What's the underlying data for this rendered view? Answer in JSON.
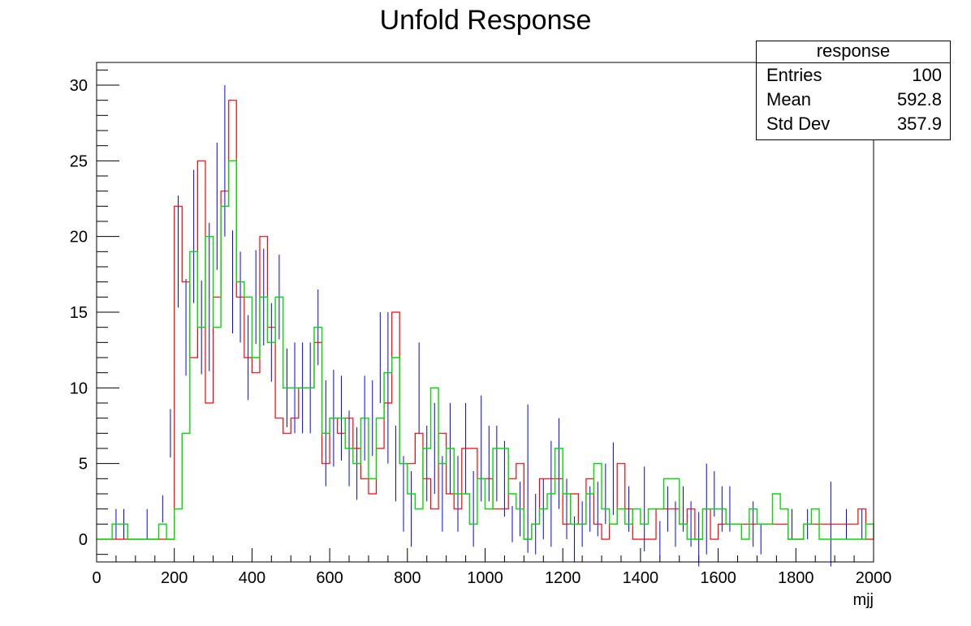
{
  "title": "Unfold Response",
  "stats": {
    "name": "response",
    "rows": [
      {
        "label": "Entries",
        "value": "100"
      },
      {
        "label": "Mean",
        "value": "592.8"
      },
      {
        "label": "Std Dev",
        "value": "357.9"
      }
    ]
  },
  "chart_data": {
    "type": "histogram",
    "title": "Unfold Response",
    "xlabel": "mjj",
    "ylabel": "",
    "xlim": [
      0,
      2000
    ],
    "ylim": [
      -1.5,
      31.5
    ],
    "bin_width": 20,
    "xticks": [
      0,
      200,
      400,
      600,
      800,
      1000,
      1200,
      1400,
      1600,
      1800,
      2000
    ],
    "yticks": [
      0,
      5,
      10,
      15,
      20,
      25,
      30
    ],
    "grid": false,
    "series": [
      {
        "style": "step",
        "color": "#ff0000",
        "values": [
          0,
          0,
          0,
          0,
          0,
          0,
          0,
          0,
          0,
          0,
          22,
          17,
          12,
          25,
          9,
          16,
          23,
          29,
          16,
          12,
          11,
          20,
          14,
          8,
          7,
          8,
          10,
          10,
          13,
          5,
          8,
          7,
          8,
          6,
          4,
          3,
          6,
          9,
          15,
          5,
          5,
          7,
          4,
          2,
          7,
          3,
          2,
          6,
          6,
          4,
          4,
          2,
          2,
          4,
          5,
          0,
          1,
          4,
          4,
          4,
          1,
          3,
          1,
          4,
          1,
          0,
          1,
          5,
          2,
          0,
          0,
          0,
          2,
          2,
          2,
          1,
          2,
          0,
          2,
          0,
          1,
          1,
          1,
          1,
          1,
          1,
          1,
          1,
          1,
          0,
          0,
          1,
          1,
          1,
          1,
          1,
          1,
          1,
          2,
          0
        ]
      },
      {
        "style": "step",
        "color": "#00dd00",
        "values": [
          0,
          0,
          1,
          1,
          0,
          0,
          0,
          0,
          1,
          0,
          2,
          7,
          19,
          14,
          20,
          14,
          22,
          25,
          17,
          16,
          12,
          16,
          13,
          16,
          10,
          10,
          10,
          10,
          14,
          7,
          8,
          8,
          6,
          5,
          8,
          4,
          8,
          11,
          12,
          5,
          3,
          2,
          6,
          10,
          5,
          6,
          3,
          3,
          1,
          4,
          2,
          6,
          6,
          3,
          2,
          0,
          1,
          2,
          3,
          6,
          3,
          1,
          1,
          3,
          5,
          2,
          1,
          2,
          1,
          2,
          1,
          2,
          2,
          4,
          4,
          1,
          0,
          0,
          2,
          2,
          2,
          1,
          1,
          0,
          2,
          1,
          1,
          3,
          2,
          0,
          0,
          1,
          2,
          0,
          0,
          0,
          0,
          0,
          0,
          1
        ]
      },
      {
        "style": "errorbars",
        "color": "#0000ff",
        "points": [
          [
            50,
            1,
            1
          ],
          [
            70,
            1,
            1
          ],
          [
            130,
            1,
            1
          ],
          [
            170,
            2,
            0.9
          ],
          [
            190,
            7,
            1.6
          ],
          [
            210,
            19,
            3.7
          ],
          [
            230,
            14,
            3.2
          ],
          [
            250,
            20,
            4.4
          ],
          [
            270,
            14,
            3.1
          ],
          [
            290,
            16,
            4.9
          ],
          [
            310,
            22,
            4.2
          ],
          [
            330,
            25,
            5.0
          ],
          [
            350,
            17,
            3.4
          ],
          [
            370,
            16,
            3.0
          ],
          [
            390,
            12,
            2.8
          ],
          [
            410,
            16,
            3.1
          ],
          [
            430,
            16,
            3.2
          ],
          [
            450,
            13,
            2.6
          ],
          [
            470,
            16,
            2.8
          ],
          [
            490,
            10,
            2.6
          ],
          [
            510,
            10,
            3.0
          ],
          [
            530,
            10,
            3.0
          ],
          [
            550,
            10,
            3.0
          ],
          [
            570,
            14,
            2.5
          ],
          [
            590,
            7,
            3.5
          ],
          [
            610,
            8,
            3.2
          ],
          [
            630,
            8,
            2.8
          ],
          [
            650,
            6,
            2.5
          ],
          [
            670,
            5,
            2.4
          ],
          [
            690,
            8,
            2.8
          ],
          [
            710,
            8,
            2.5
          ],
          [
            730,
            12,
            3.0
          ],
          [
            750,
            10,
            5.0
          ],
          [
            770,
            5,
            2.5
          ],
          [
            790,
            3,
            2.5
          ],
          [
            810,
            2,
            2.5
          ],
          [
            830,
            10,
            3.0
          ],
          [
            850,
            5,
            2.5
          ],
          [
            870,
            6,
            3.0
          ],
          [
            890,
            3,
            2.5
          ],
          [
            910,
            6,
            3.0
          ],
          [
            930,
            3,
            2.5
          ],
          [
            950,
            6,
            3.0
          ],
          [
            970,
            2,
            2.5
          ],
          [
            990,
            6,
            3.5
          ],
          [
            1010,
            5,
            2.5
          ],
          [
            1030,
            5,
            2.5
          ],
          [
            1050,
            4,
            2.5
          ],
          [
            1070,
            1,
            1.2
          ],
          [
            1090,
            2,
            1.8
          ],
          [
            1110,
            4,
            4.9
          ],
          [
            1130,
            1,
            2.0
          ],
          [
            1150,
            2,
            2.0
          ],
          [
            1170,
            3,
            3.5
          ],
          [
            1190,
            5,
            3.0
          ],
          [
            1210,
            2,
            2.0
          ],
          [
            1230,
            0,
            1.5
          ],
          [
            1250,
            1,
            1.5
          ],
          [
            1270,
            2,
            1.5
          ],
          [
            1290,
            2,
            1.8
          ],
          [
            1310,
            3,
            2.0
          ],
          [
            1330,
            4,
            2.4
          ],
          [
            1370,
            2,
            1.5
          ],
          [
            1410,
            2,
            2.8
          ],
          [
            1450,
            0,
            1.2
          ],
          [
            1470,
            2,
            1.5
          ],
          [
            1490,
            1,
            1.5
          ],
          [
            1510,
            2,
            1.5
          ],
          [
            1530,
            1,
            1.5
          ],
          [
            1550,
            0,
            1.8
          ],
          [
            1570,
            2,
            3.0
          ],
          [
            1590,
            3,
            1.5
          ],
          [
            1610,
            2,
            1.5
          ],
          [
            1630,
            2,
            1.5
          ],
          [
            1690,
            1,
            1.5
          ],
          [
            1710,
            0,
            1.0
          ],
          [
            1790,
            1,
            1.0
          ],
          [
            1830,
            1,
            1.0
          ],
          [
            1860,
            1,
            1.0
          ],
          [
            1890,
            1,
            2.8
          ],
          [
            1930,
            1,
            1.0
          ],
          [
            1970,
            1,
            1.0
          ]
        ]
      }
    ]
  }
}
